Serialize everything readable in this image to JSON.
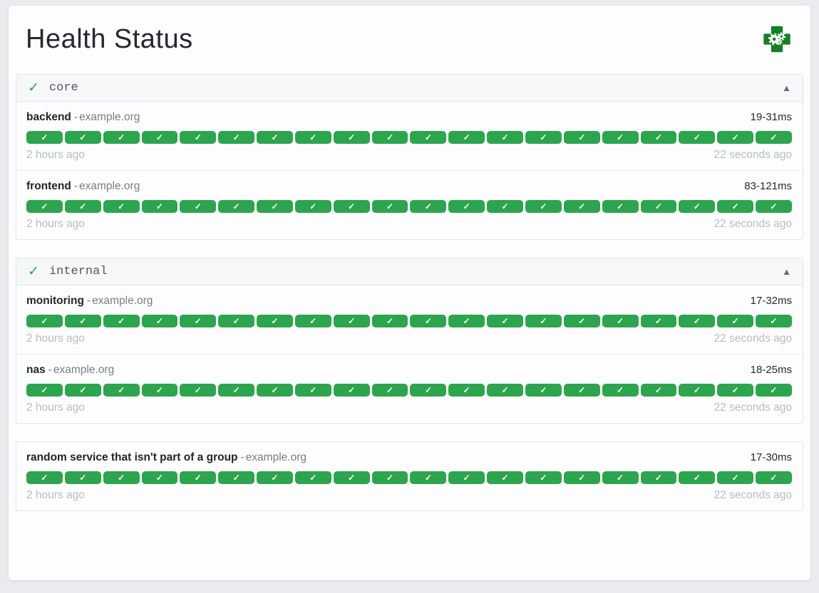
{
  "page": {
    "title": "Health Status"
  },
  "icons": {
    "success_check": "✓",
    "group_check": "✓",
    "collapse_arrow": "▲",
    "logo_name": "health-cross-gears-logo"
  },
  "separator": "-",
  "colors": {
    "badge_success": "#2da44e",
    "group_check_green": "#28a745",
    "logo_green": "#157f27",
    "page_background": "#e9ebee"
  },
  "groups": [
    {
      "name": "core",
      "endpoints": [
        {
          "name": "backend",
          "host": "example.org",
          "response_time": "19-31ms",
          "oldest_result": "2 hours ago",
          "newest_result": "22 seconds ago",
          "results": [
            "success",
            "success",
            "success",
            "success",
            "success",
            "success",
            "success",
            "success",
            "success",
            "success",
            "success",
            "success",
            "success",
            "success",
            "success",
            "success",
            "success",
            "success",
            "success",
            "success"
          ]
        },
        {
          "name": "frontend",
          "host": "example.org",
          "response_time": "83-121ms",
          "oldest_result": "2 hours ago",
          "newest_result": "22 seconds ago",
          "results": [
            "success",
            "success",
            "success",
            "success",
            "success",
            "success",
            "success",
            "success",
            "success",
            "success",
            "success",
            "success",
            "success",
            "success",
            "success",
            "success",
            "success",
            "success",
            "success",
            "success"
          ]
        }
      ]
    },
    {
      "name": "internal",
      "endpoints": [
        {
          "name": "monitoring",
          "host": "example.org",
          "response_time": "17-32ms",
          "oldest_result": "2 hours ago",
          "newest_result": "22 seconds ago",
          "results": [
            "success",
            "success",
            "success",
            "success",
            "success",
            "success",
            "success",
            "success",
            "success",
            "success",
            "success",
            "success",
            "success",
            "success",
            "success",
            "success",
            "success",
            "success",
            "success",
            "success"
          ]
        },
        {
          "name": "nas",
          "host": "example.org",
          "response_time": "18-25ms",
          "oldest_result": "2 hours ago",
          "newest_result": "22 seconds ago",
          "results": [
            "success",
            "success",
            "success",
            "success",
            "success",
            "success",
            "success",
            "success",
            "success",
            "success",
            "success",
            "success",
            "success",
            "success",
            "success",
            "success",
            "success",
            "success",
            "success",
            "success"
          ]
        }
      ]
    }
  ],
  "ungrouped_endpoints": [
    {
      "name": "random service that isn't part of a group",
      "host": "example.org",
      "response_time": "17-30ms",
      "oldest_result": "2 hours ago",
      "newest_result": "22 seconds ago",
      "results": [
        "success",
        "success",
        "success",
        "success",
        "success",
        "success",
        "success",
        "success",
        "success",
        "success",
        "success",
        "success",
        "success",
        "success",
        "success",
        "success",
        "success",
        "success",
        "success",
        "success"
      ]
    }
  ]
}
